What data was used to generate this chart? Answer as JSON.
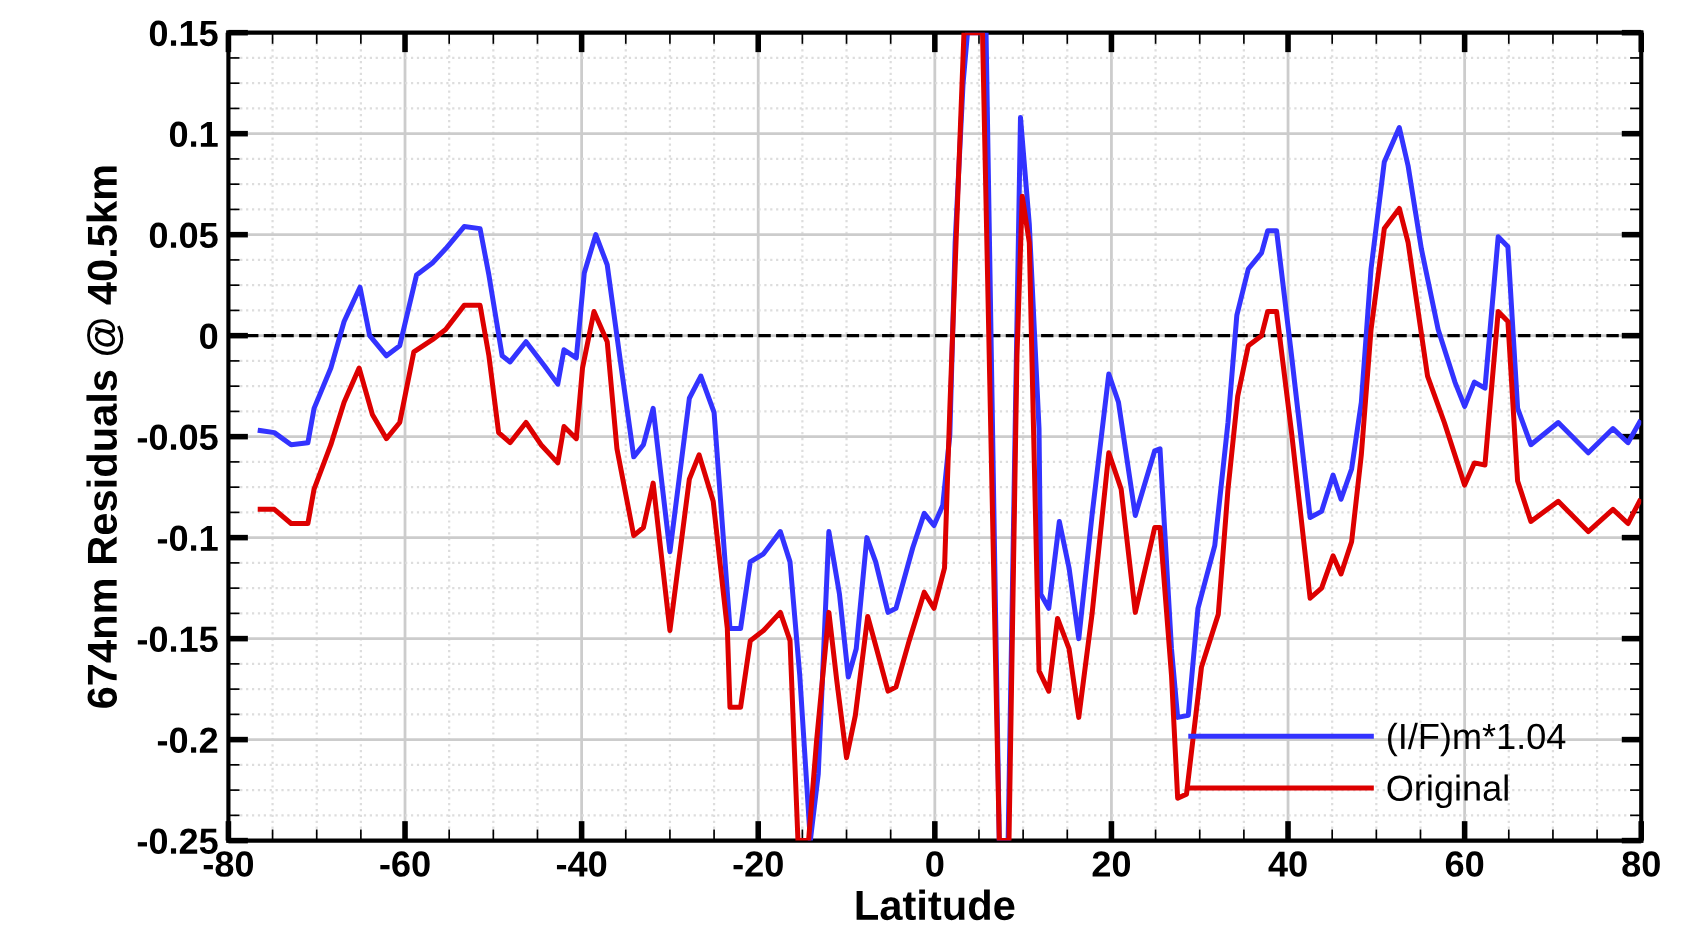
{
  "chart_data": {
    "type": "line",
    "xlabel": "Latitude",
    "ylabel": "674nm Residuals @ 40.5km",
    "xlim": [
      -80,
      80
    ],
    "xticks": [
      -80,
      -60,
      -40,
      -20,
      0,
      20,
      40,
      60,
      80
    ],
    "ylim": [
      -0.25,
      0.15
    ],
    "yticks": [
      -0.25,
      -0.2,
      -0.15,
      -0.1,
      -0.05,
      0,
      0.05,
      0.1,
      0.15
    ],
    "grid": true,
    "legend": "bottom right",
    "line_style": "solid",
    "marker": "none",
    "ref_lines": [
      {
        "axis": "y",
        "value": 0,
        "color": "#000000",
        "line_style": "dashed"
      }
    ],
    "series": [
      {
        "name": "(I/F)m*1.04",
        "color": "#3333ff",
        "x": [
          -76.4,
          -74.8,
          -72.9,
          -71.0,
          -70.3,
          -68.4,
          -66.9,
          -65.1,
          -64.0,
          -62.1,
          -60.6,
          -58.7,
          -56.9,
          -55.4,
          -53.3,
          -51.5,
          -50.5,
          -49.0,
          -48.1,
          -46.3,
          -44.2,
          -42.7,
          -42.0,
          -40.6,
          -39.7,
          -38.4,
          -37.1,
          -35.6,
          -34.1,
          -33.0,
          -31.9,
          -30.0,
          -27.8,
          -26.5,
          -25.0,
          -23.2,
          -22.0,
          -20.9,
          -19.4,
          -17.5,
          -16.4,
          -15.3,
          -14.1,
          -13.2,
          -12.0,
          -10.8,
          -9.8,
          -8.9,
          -7.7,
          -6.7,
          -5.3,
          -4.4,
          -2.5,
          -1.2,
          -0.1,
          0.9,
          1.7,
          2.3,
          3.2,
          3.7,
          5.8,
          7.3,
          8.3,
          9.7,
          10.7,
          11.8,
          12.0,
          12.9,
          14.1,
          15.2,
          16.3,
          17.8,
          19.7,
          20.8,
          22.7,
          24.9,
          25.5,
          26.8,
          27.5,
          28.7,
          29.8,
          31.7,
          33.2,
          34.2,
          35.5,
          37.0,
          37.7,
          38.7,
          40.4,
          42.5,
          43.8,
          45.1,
          46.0,
          47.2,
          48.3,
          49.4,
          50.9,
          52.6,
          53.6,
          55.1,
          57.0,
          58.9,
          60.0,
          61.1,
          62.3,
          63.8,
          64.9,
          66.0,
          67.5,
          70.6,
          74.0,
          76.8,
          78.5,
          79.8
        ],
        "values": [
          -0.047,
          -0.048,
          -0.054,
          -0.053,
          -0.036,
          -0.016,
          0.007,
          0.024,
          0.0,
          -0.01,
          -0.005,
          0.03,
          0.036,
          0.043,
          0.054,
          0.053,
          0.03,
          -0.01,
          -0.013,
          -0.003,
          -0.015,
          -0.024,
          -0.007,
          -0.011,
          0.031,
          0.05,
          0.035,
          -0.013,
          -0.06,
          -0.054,
          -0.036,
          -0.107,
          -0.031,
          -0.02,
          -0.038,
          -0.145,
          -0.145,
          -0.112,
          -0.108,
          -0.097,
          -0.112,
          -0.168,
          -0.25,
          -0.217,
          -0.097,
          -0.128,
          -0.169,
          -0.155,
          -0.1,
          -0.112,
          -0.137,
          -0.135,
          -0.105,
          -0.088,
          -0.094,
          -0.084,
          -0.049,
          0.046,
          0.125,
          0.15,
          0.15,
          -0.25,
          -0.25,
          0.108,
          0.055,
          -0.046,
          -0.128,
          -0.135,
          -0.092,
          -0.115,
          -0.15,
          -0.089,
          -0.019,
          -0.033,
          -0.089,
          -0.057,
          -0.056,
          -0.155,
          -0.189,
          -0.188,
          -0.135,
          -0.104,
          -0.043,
          0.01,
          0.033,
          0.041,
          0.052,
          0.052,
          -0.01,
          -0.09,
          -0.087,
          -0.069,
          -0.081,
          -0.066,
          -0.033,
          0.033,
          0.086,
          0.103,
          0.084,
          0.043,
          0.003,
          -0.023,
          -0.035,
          -0.023,
          -0.026,
          0.049,
          0.044,
          -0.036,
          -0.054,
          -0.043,
          -0.058,
          -0.046,
          -0.053,
          -0.043
        ]
      },
      {
        "name": "Original",
        "color": "#dd0000",
        "x": [
          -76.4,
          -74.8,
          -72.9,
          -71.0,
          -70.3,
          -68.4,
          -66.9,
          -65.2,
          -63.7,
          -62.1,
          -60.6,
          -59.0,
          -56.9,
          -55.4,
          -53.3,
          -51.5,
          -50.5,
          -49.4,
          -48.1,
          -46.3,
          -44.6,
          -42.7,
          -42.0,
          -40.6,
          -39.9,
          -38.6,
          -37.1,
          -36.0,
          -34.1,
          -33.0,
          -31.9,
          -30.0,
          -27.8,
          -26.7,
          -25.1,
          -23.5,
          -23.2,
          -22.0,
          -20.9,
          -19.4,
          -17.5,
          -16.4,
          -15.5,
          -14.3,
          -13.4,
          -12.0,
          -11.1,
          -10.0,
          -9.0,
          -7.6,
          -6.6,
          -5.3,
          -4.4,
          -2.9,
          -1.2,
          -0.1,
          1.1,
          1.7,
          2.4,
          3.3,
          5.4,
          7.3,
          8.4,
          9.3,
          9.9,
          10.7,
          11.8,
          12.9,
          13.9,
          15.2,
          16.3,
          17.8,
          19.7,
          21.1,
          22.7,
          24.9,
          25.5,
          26.8,
          27.5,
          28.5,
          30.2,
          32.1,
          33.2,
          34.3,
          35.5,
          37.0,
          37.7,
          38.7,
          40.4,
          42.5,
          43.8,
          45.1,
          46.0,
          47.2,
          48.3,
          49.4,
          50.9,
          52.6,
          53.6,
          55.8,
          57.7,
          60.0,
          61.1,
          62.3,
          63.8,
          64.9,
          66.0,
          67.5,
          70.6,
          74.0,
          76.8,
          78.5,
          79.8
        ],
        "values": [
          -0.086,
          -0.086,
          -0.093,
          -0.093,
          -0.076,
          -0.054,
          -0.033,
          -0.016,
          -0.039,
          -0.051,
          -0.043,
          -0.008,
          -0.002,
          0.003,
          0.015,
          0.015,
          -0.01,
          -0.048,
          -0.053,
          -0.043,
          -0.054,
          -0.063,
          -0.045,
          -0.051,
          -0.016,
          0.012,
          -0.003,
          -0.056,
          -0.099,
          -0.095,
          -0.073,
          -0.146,
          -0.071,
          -0.059,
          -0.082,
          -0.145,
          -0.184,
          -0.184,
          -0.151,
          -0.146,
          -0.137,
          -0.151,
          -0.25,
          -0.25,
          -0.201,
          -0.137,
          -0.171,
          -0.209,
          -0.188,
          -0.139,
          -0.155,
          -0.176,
          -0.174,
          -0.151,
          -0.127,
          -0.135,
          -0.115,
          -0.036,
          0.046,
          0.15,
          0.15,
          -0.25,
          -0.25,
          -0.01,
          0.069,
          0.046,
          -0.166,
          -0.176,
          -0.14,
          -0.155,
          -0.189,
          -0.138,
          -0.058,
          -0.076,
          -0.137,
          -0.095,
          -0.095,
          -0.168,
          -0.229,
          -0.227,
          -0.164,
          -0.138,
          -0.076,
          -0.03,
          -0.005,
          0.0,
          0.012,
          0.012,
          -0.048,
          -0.13,
          -0.125,
          -0.109,
          -0.118,
          -0.102,
          -0.059,
          0.003,
          0.053,
          0.063,
          0.046,
          -0.02,
          -0.043,
          -0.074,
          -0.063,
          -0.064,
          0.012,
          0.007,
          -0.072,
          -0.092,
          -0.082,
          -0.097,
          -0.086,
          -0.093,
          -0.082
        ]
      }
    ]
  }
}
